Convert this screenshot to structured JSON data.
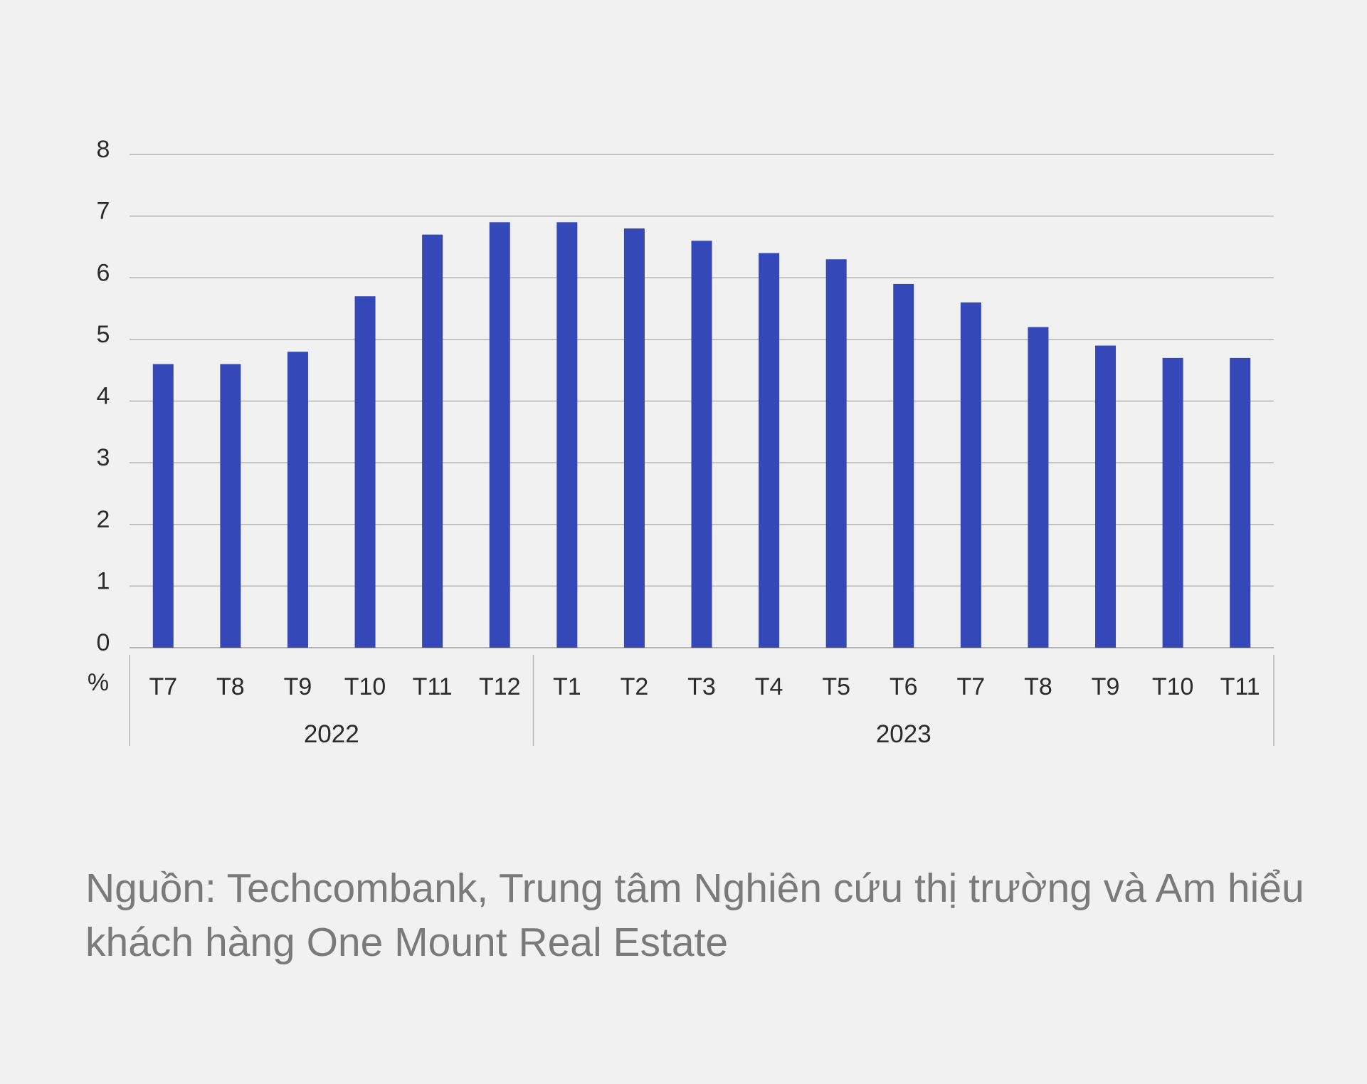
{
  "chart_data": {
    "type": "bar",
    "ylabel": "%",
    "ylim": [
      0,
      8
    ],
    "yticks": [
      0,
      1,
      2,
      3,
      4,
      5,
      6,
      7,
      8
    ],
    "grid": true,
    "categories": [
      "T7",
      "T8",
      "T9",
      "T10",
      "T11",
      "T12",
      "T1",
      "T2",
      "T3",
      "T4",
      "T5",
      "T6",
      "T7",
      "T8",
      "T9",
      "T10",
      "T11"
    ],
    "groups": [
      {
        "label": "2022",
        "count": 6
      },
      {
        "label": "2023",
        "count": 11
      }
    ],
    "series": [
      {
        "values": [
          4.6,
          4.6,
          4.8,
          5.7,
          6.7,
          6.9,
          6.9,
          6.8,
          6.6,
          6.4,
          6.3,
          5.9,
          5.6,
          5.2,
          4.9,
          4.7,
          4.7
        ]
      }
    ],
    "colors": {
      "bar": "#3548b8",
      "grid": "#b3b3b3",
      "text": "#2b2b2b"
    }
  },
  "source_text": "Nguồn: Techcombank, Trung tâm Nghiên  cứu thị trường và Am hiểu khách hàng One Mount Real Estate"
}
